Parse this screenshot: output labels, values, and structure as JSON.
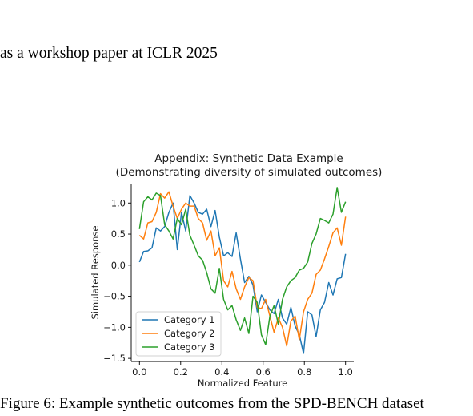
{
  "header": {
    "text": "as a workshop paper at ICLR 2025"
  },
  "caption": {
    "text": "Figure 6: Example synthetic outcomes from the SPD-BENCH dataset"
  },
  "colors": {
    "category1": "#1f77b4",
    "category2": "#ff7f0e",
    "category3": "#2ca02c"
  },
  "chart_data": {
    "type": "line",
    "title": "Appendix: Synthetic Data Example",
    "subtitle": "(Demonstrating diversity of simulated outcomes)",
    "xlabel": "Normalized Feature",
    "ylabel": "Simulated Response",
    "xlim": [
      -0.04,
      1.04
    ],
    "ylim": [
      -1.55,
      1.3
    ],
    "xticks": [
      0.0,
      0.2,
      0.4,
      0.6,
      0.8,
      1.0
    ],
    "xtick_labels": [
      "0.0",
      "0.2",
      "0.4",
      "0.6",
      "0.8",
      "1.0"
    ],
    "yticks": [
      -1.5,
      -1.0,
      -0.5,
      0.0,
      0.5,
      1.0
    ],
    "ytick_labels": [
      "−1.5",
      "−1.0",
      "−0.5",
      "0.0",
      "0.5",
      "1.0"
    ],
    "grid": false,
    "legend_position": "lower-left",
    "x": [
      0.0,
      0.0204,
      0.0408,
      0.0612,
      0.0816,
      0.102,
      0.1224,
      0.1429,
      0.1633,
      0.1837,
      0.2041,
      0.2245,
      0.2449,
      0.2653,
      0.2857,
      0.3061,
      0.3265,
      0.3469,
      0.3673,
      0.3878,
      0.4082,
      0.4286,
      0.449,
      0.4694,
      0.4898,
      0.5102,
      0.5306,
      0.551,
      0.5714,
      0.5918,
      0.6122,
      0.6327,
      0.6531,
      0.6735,
      0.6939,
      0.7143,
      0.7347,
      0.7551,
      0.7755,
      0.7959,
      0.8163,
      0.8367,
      0.8571,
      0.8776,
      0.898,
      0.9184,
      0.9388,
      0.9592,
      0.9796,
      1.0
    ],
    "series": [
      {
        "name": "Category 1",
        "values": [
          0.05,
          0.22,
          0.23,
          0.28,
          0.6,
          0.55,
          0.62,
          0.85,
          1.0,
          0.25,
          0.85,
          0.55,
          1.12,
          1.0,
          0.85,
          0.82,
          0.9,
          0.62,
          0.88,
          0.45,
          0.15,
          0.2,
          0.14,
          0.52,
          0.1,
          -0.28,
          -0.18,
          -0.32,
          -0.75,
          -0.48,
          -0.6,
          -0.72,
          -0.78,
          -0.55,
          -0.85,
          -0.95,
          -0.68,
          -0.98,
          -1.12,
          -1.42,
          -0.75,
          -0.8,
          -1.15,
          -0.72,
          -0.6,
          -0.28,
          -0.48,
          -0.22,
          -0.2,
          0.18
        ]
      },
      {
        "name": "Category 2",
        "values": [
          0.48,
          0.42,
          0.68,
          0.7,
          0.85,
          1.15,
          1.08,
          1.18,
          0.95,
          0.75,
          0.9,
          1.0,
          0.95,
          0.95,
          0.75,
          0.68,
          0.4,
          0.55,
          0.15,
          0.28,
          -0.25,
          -0.35,
          -0.1,
          -0.38,
          -0.55,
          -0.35,
          -0.2,
          -0.25,
          -0.68,
          -0.7,
          -0.55,
          -0.82,
          -1.08,
          -0.85,
          -1.0,
          -1.3,
          -0.9,
          -0.82,
          -1.2,
          -0.75,
          -0.55,
          -0.45,
          -0.15,
          -0.08,
          0.1,
          0.3,
          0.52,
          0.6,
          0.32,
          0.78
        ]
      },
      {
        "name": "Category 3",
        "values": [
          0.58,
          1.02,
          1.1,
          1.05,
          1.16,
          1.12,
          0.65,
          0.55,
          0.42,
          0.75,
          0.65,
          0.9,
          0.48,
          0.32,
          0.15,
          0.08,
          -0.12,
          -0.38,
          -0.45,
          -0.05,
          -0.55,
          -0.72,
          -0.65,
          -0.88,
          -1.05,
          -0.85,
          -1.1,
          -0.5,
          -0.6,
          -1.12,
          -1.28,
          -0.82,
          -0.65,
          -0.95,
          -0.55,
          -0.35,
          -0.25,
          -0.2,
          -0.08,
          -0.05,
          0.05,
          0.35,
          0.5,
          0.75,
          0.72,
          0.68,
          0.82,
          1.25,
          0.85,
          1.02
        ]
      }
    ]
  }
}
